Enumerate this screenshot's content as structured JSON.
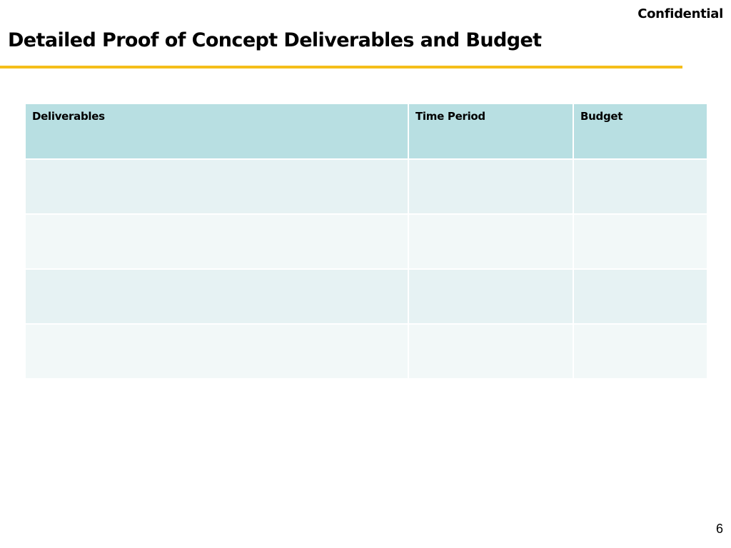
{
  "header": {
    "confidential_label": "Confidential",
    "title": "Detailed Proof of Concept Deliverables and Budget"
  },
  "table": {
    "columns": [
      "Deliverables",
      "Time Period",
      "Budget"
    ],
    "rows": [
      [
        "",
        "",
        ""
      ],
      [
        "",
        "",
        ""
      ],
      [
        "",
        "",
        ""
      ],
      [
        "",
        "",
        ""
      ]
    ]
  },
  "colors": {
    "accent_rule": "#F5BE1A",
    "header_fill": "#B8DFE2",
    "row_band_dark": "#E6F2F3",
    "row_band_light": "#F2F8F8"
  },
  "footer": {
    "page_number": "6"
  }
}
